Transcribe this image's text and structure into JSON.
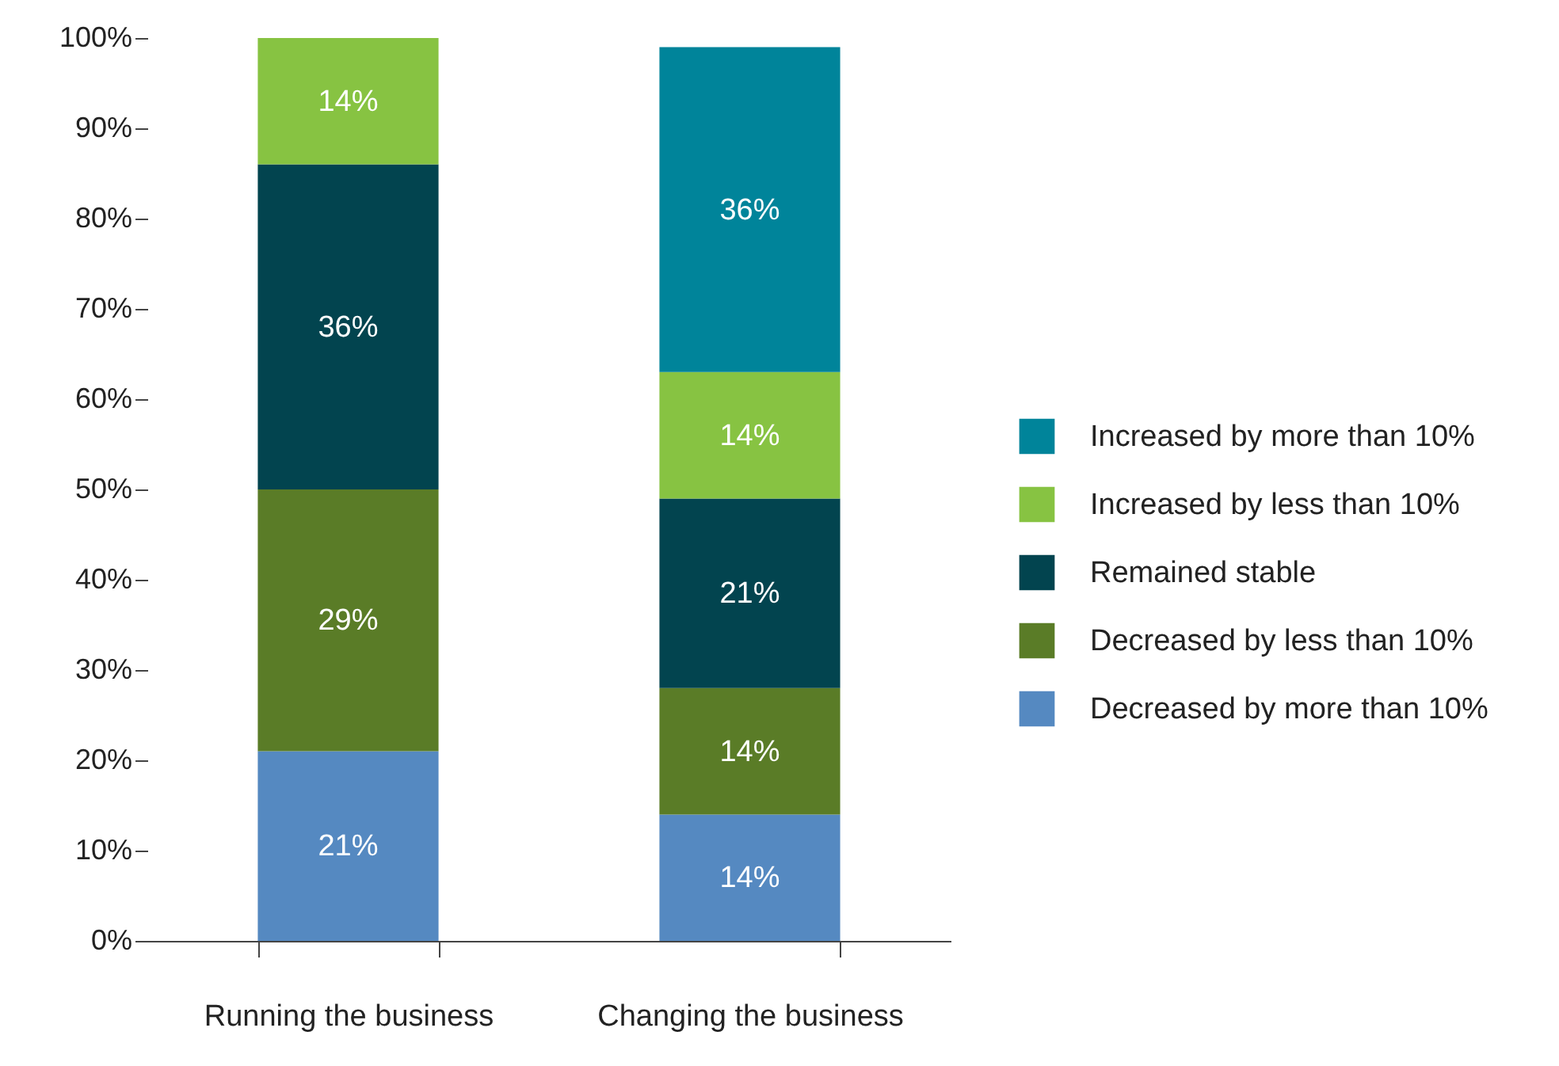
{
  "chart_data": {
    "type": "bar",
    "stacked": true,
    "categories": [
      "Running the business",
      "Changing the business"
    ],
    "series": [
      {
        "name": "Decreased by more than 10%",
        "color": "#5589c1",
        "values": [
          21,
          14
        ],
        "value_labels": [
          "21%",
          "14%"
        ]
      },
      {
        "name": "Decreased by less than 10%",
        "color": "#5a7c27",
        "values": [
          29,
          14
        ],
        "value_labels": [
          "29%",
          "14%"
        ]
      },
      {
        "name": "Remained stable",
        "color": "#02444f",
        "values": [
          36,
          21
        ],
        "value_labels": [
          "36%",
          "21%"
        ]
      },
      {
        "name": "Increased by less than 10%",
        "color": "#87c342",
        "values": [
          14,
          14
        ],
        "value_labels": [
          "14%",
          "14%"
        ]
      },
      {
        "name": "Increased by more than 10%",
        "color": "#00849a",
        "values": [
          null,
          36
        ],
        "value_labels": [
          null,
          "36%"
        ]
      }
    ],
    "ylim": [
      0,
      100
    ],
    "yticks": [
      {
        "value": 0,
        "label": "0%"
      },
      {
        "value": 10,
        "label": "10%"
      },
      {
        "value": 20,
        "label": "20%"
      },
      {
        "value": 30,
        "label": "30%"
      },
      {
        "value": 40,
        "label": "40%"
      },
      {
        "value": 50,
        "label": "50%"
      },
      {
        "value": 60,
        "label": "60%"
      },
      {
        "value": 70,
        "label": "70%"
      },
      {
        "value": 80,
        "label": "80%"
      },
      {
        "value": 90,
        "label": "90%"
      },
      {
        "value": 100,
        "label": "100%"
      }
    ],
    "grid": false,
    "legend": "right"
  }
}
